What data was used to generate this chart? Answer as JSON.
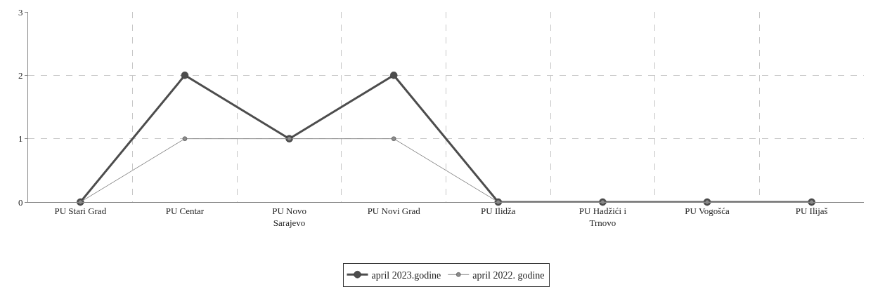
{
  "chart_data": {
    "type": "line",
    "categories": [
      "PU Stari Grad",
      "PU Centar",
      "PU Novo Sarajevo",
      "PU Novi Grad",
      "PU Ilidža",
      "PU Hadžići i Trnovo",
      "PU Vogošća",
      "PU Ilijaš"
    ],
    "series": [
      {
        "name": "april 2023.godine",
        "color": "#4d4d4d",
        "values": [
          0,
          2,
          1,
          2,
          0,
          0,
          0,
          0
        ]
      },
      {
        "name": "april 2022. godine",
        "color": "#8c8c8c",
        "values": [
          0,
          1,
          1,
          1,
          0,
          0,
          0,
          0
        ]
      }
    ],
    "ylim": [
      0,
      3
    ],
    "yticks": [
      0,
      1,
      2,
      3
    ],
    "grid": true,
    "legend": "bottom",
    "marker": "circle",
    "line_style": "solid"
  }
}
